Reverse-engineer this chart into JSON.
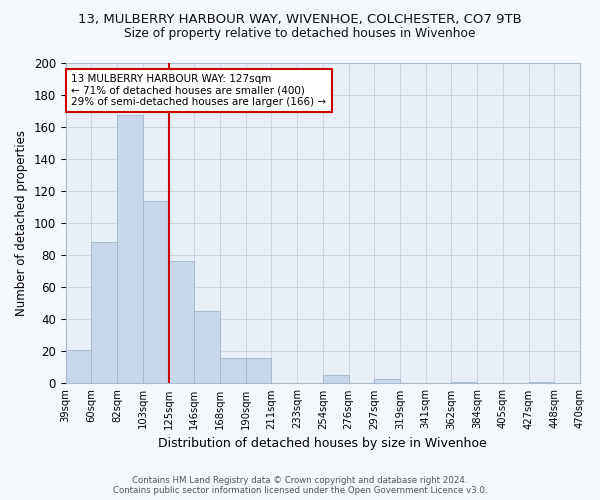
{
  "title_line1": "13, MULBERRY HARBOUR WAY, WIVENHOE, COLCHESTER, CO7 9TB",
  "title_line2": "Size of property relative to detached houses in Wivenhoe",
  "xlabel": "Distribution of detached houses by size in Wivenhoe",
  "ylabel": "Number of detached properties",
  "bar_values": [
    21,
    88,
    167,
    114,
    76,
    45,
    16,
    16,
    0,
    0,
    5,
    0,
    3,
    0,
    0,
    1,
    0,
    0,
    1,
    0
  ],
  "bin_labels": [
    "39sqm",
    "60sqm",
    "82sqm",
    "103sqm",
    "125sqm",
    "146sqm",
    "168sqm",
    "190sqm",
    "211sqm",
    "233sqm",
    "254sqm",
    "276sqm",
    "297sqm",
    "319sqm",
    "341sqm",
    "362sqm",
    "384sqm",
    "405sqm",
    "427sqm",
    "448sqm",
    "470sqm"
  ],
  "bar_color": "#c8d8ea",
  "bar_edge_color": "#a0b8cc",
  "vline_x": 4.0,
  "annotation_line1": "13 MULBERRY HARBOUR WAY: 127sqm",
  "annotation_line2": "← 71% of detached houses are smaller (400)",
  "annotation_line3": "29% of semi-detached houses are larger (166) →",
  "annotation_box_color": "#ffffff",
  "annotation_box_edge": "#cc0000",
  "vline_color": "#cc0000",
  "ylim": [
    0,
    200
  ],
  "yticks": [
    0,
    20,
    40,
    60,
    80,
    100,
    120,
    140,
    160,
    180,
    200
  ],
  "grid_color": "#c8d0dc",
  "bg_color": "#e8eef6",
  "fig_bg_color": "#f4f7fb",
  "footer_line1": "Contains HM Land Registry data © Crown copyright and database right 2024.",
  "footer_line2": "Contains public sector information licensed under the Open Government Licence v3.0."
}
